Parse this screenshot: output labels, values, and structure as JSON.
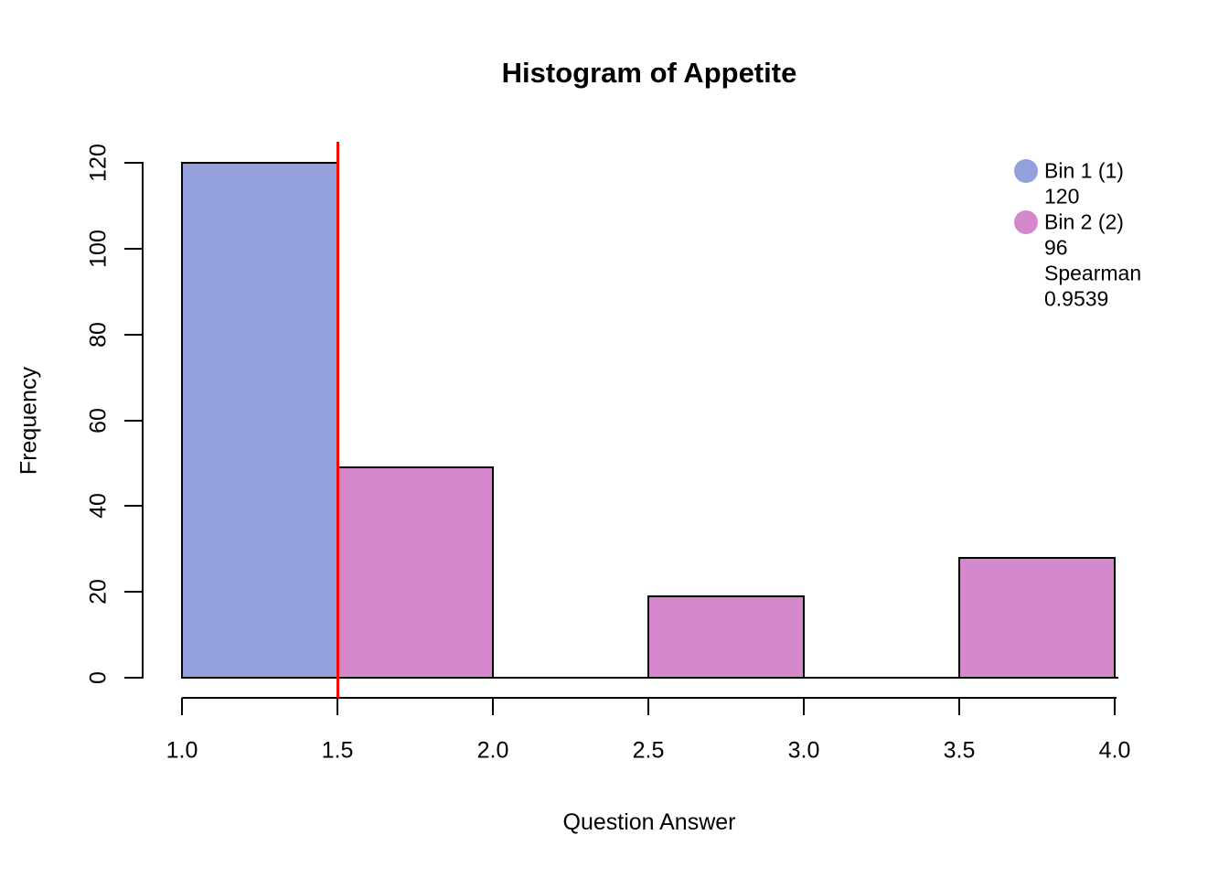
{
  "page": {
    "background_color": "#FFFFFF"
  },
  "chart_data": {
    "type": "bar",
    "title": "Histogram of Appetite",
    "xlabel": "Question Answer",
    "ylabel": "Frequency",
    "xlim": [
      1.0,
      4.0
    ],
    "ylim": [
      0,
      120
    ],
    "grid": false,
    "x_tick_labels": [
      "1.0",
      "1.5",
      "2.0",
      "2.5",
      "3.0",
      "3.5",
      "4.0"
    ],
    "x_tick_values": [
      1.0,
      1.5,
      2.0,
      2.5,
      3.0,
      3.5,
      4.0
    ],
    "y_tick_labels": [
      "0",
      "20",
      "40",
      "60",
      "80",
      "100",
      "120"
    ],
    "y_tick_values": [
      0,
      20,
      40,
      60,
      80,
      100,
      120
    ],
    "bins": [
      {
        "from": 1.0,
        "to": 1.5,
        "count": 120,
        "color": "#93A0DB"
      },
      {
        "from": 1.5,
        "to": 2.0,
        "count": 49,
        "color": "#D588CB"
      },
      {
        "from": 2.0,
        "to": 2.5,
        "count": 0,
        "color": "#D588CB"
      },
      {
        "from": 2.5,
        "to": 3.0,
        "count": 19,
        "color": "#D588CB"
      },
      {
        "from": 3.0,
        "to": 3.5,
        "count": 0,
        "color": "#D588CB"
      },
      {
        "from": 3.5,
        "to": 4.0,
        "count": 28,
        "color": "#D588CB"
      }
    ],
    "bar_border_color": "#000000",
    "axis_color": "#000000",
    "vline": {
      "x": 1.5,
      "color": "#FF0000"
    },
    "legend": {
      "position": "top-right",
      "entries": [
        {
          "dot_color": "#93A0DB",
          "lines": [
            "Bin 1 (1)",
            "120"
          ]
        },
        {
          "dot_color": "#D588CB",
          "lines": [
            "Bin 2 (2)",
            "96",
            "Spearman",
            "0.9539"
          ]
        }
      ]
    }
  }
}
